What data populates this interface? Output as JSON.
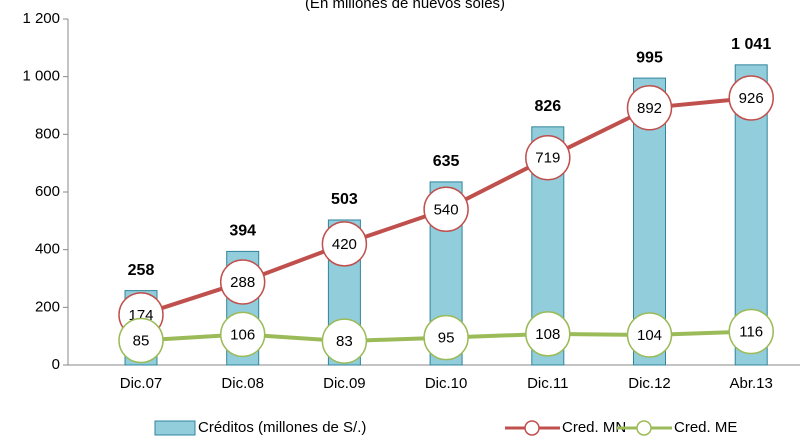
{
  "chart_data": {
    "type": "bar-line",
    "subtitle": "(En millones de nuevos soles)",
    "categories": [
      "Dic.07",
      "Dic.08",
      "Dic.09",
      "Dic.10",
      "Dic.11",
      "Dic.12",
      "Abr.13"
    ],
    "series": [
      {
        "name": "Créditos (millones de S/.)",
        "type": "bar",
        "color": "#92cddc",
        "values": [
          258,
          394,
          503,
          635,
          826,
          995,
          1041
        ],
        "value_labels": [
          "258",
          "394",
          "503",
          "635",
          "826",
          "995",
          "1 041"
        ]
      },
      {
        "name": "Cred. MN",
        "type": "line",
        "color": "#c0504d",
        "values": [
          174,
          288,
          420,
          540,
          719,
          892,
          926
        ]
      },
      {
        "name": "Cred. ME",
        "type": "line",
        "color": "#9bbb59",
        "values": [
          85,
          106,
          83,
          95,
          108,
          104,
          116
        ]
      }
    ],
    "ylim": [
      0,
      1200
    ],
    "yticks": [
      0,
      200,
      400,
      600,
      800,
      {
        "value": 1000,
        "label": "1 000"
      },
      {
        "value": 1200,
        "label": "1 200"
      }
    ]
  }
}
